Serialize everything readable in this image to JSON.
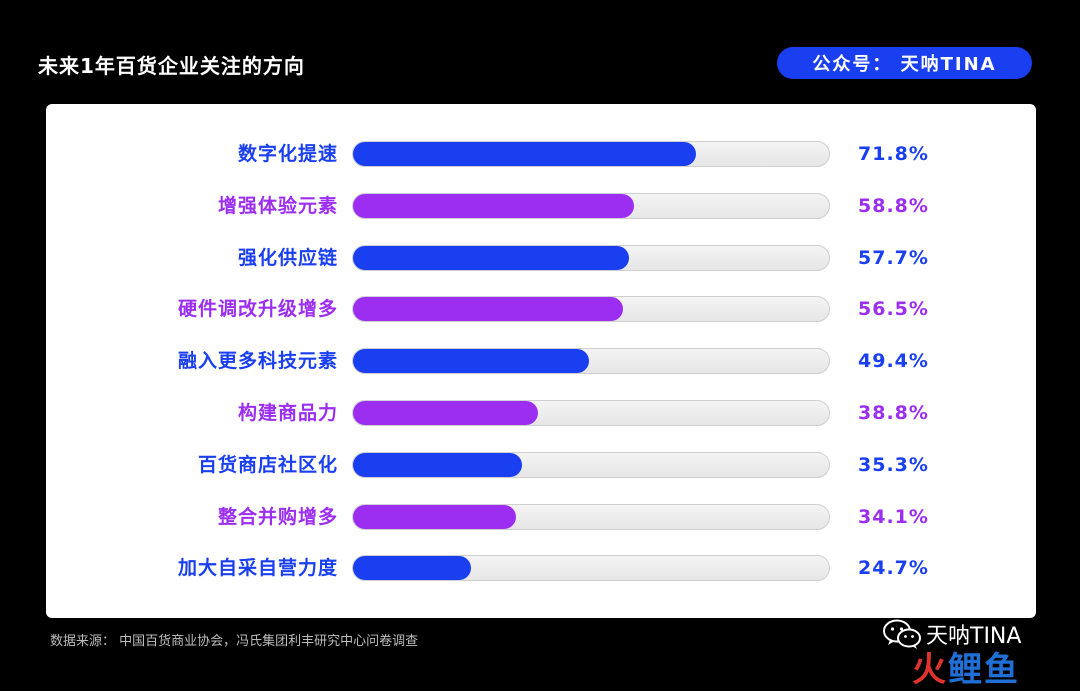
{
  "header": {
    "title": "未来1年百货企业关注的方向",
    "account_badge": "公众号：  天呐TINA"
  },
  "colors": {
    "blue": "#1a3ff0",
    "purple": "#9b2ef0",
    "badge": "#1a3ff0"
  },
  "chart_data": {
    "type": "bar",
    "orientation": "horizontal",
    "unit": "%",
    "xlim": [
      0,
      100
    ],
    "categories": [
      "数字化提速",
      "增强体验元素",
      "强化供应链",
      "硬件调改升级增多",
      "融入更多科技元素",
      "构建商品力",
      "百货商店社区化",
      "整合并购增多",
      "加大自采自营力度"
    ],
    "values": [
      71.8,
      58.8,
      57.7,
      56.5,
      49.4,
      38.8,
      35.3,
      34.1,
      24.7
    ],
    "value_labels": [
      "71.8%",
      "58.8%",
      "57.7%",
      "56.5%",
      "49.4%",
      "38.8%",
      "35.3%",
      "34.1%",
      "24.7%"
    ],
    "bar_colors": [
      "blue",
      "purple",
      "blue",
      "purple",
      "blue",
      "purple",
      "blue",
      "purple",
      "blue"
    ]
  },
  "footer": {
    "source": "数据来源：  中国百货商业协会，冯氏集团利丰研究中心问卷调查",
    "watermark_account": "天呐TINA",
    "watermark_site_part1": "火",
    "watermark_site_part2": "鲤鱼"
  }
}
